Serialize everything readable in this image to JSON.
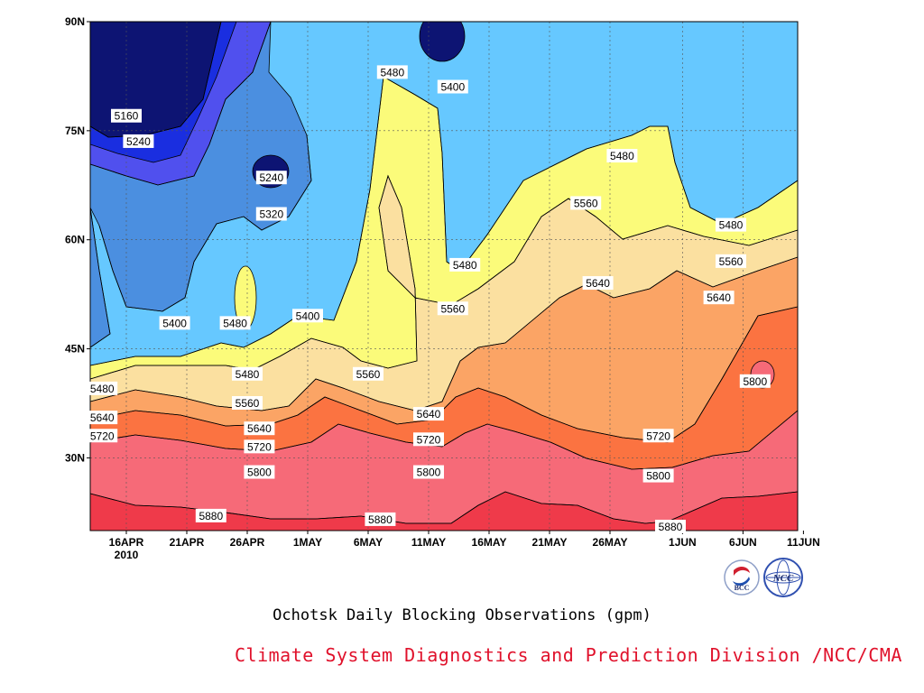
{
  "title": "Ochotsk Daily Blocking Observations (gpm)",
  "credit": "Climate System Diagnostics and Prediction Division /NCC/CMA",
  "logos": [
    {
      "name": "bcc-logo",
      "text": "BCC"
    },
    {
      "name": "ncc-logo",
      "text": "NCC"
    }
  ],
  "colors": {
    "c5160": "#0d1473",
    "c5240": "#1a2ee0",
    "c5320": "#5050ee",
    "c5400": "#4b8fe0",
    "c5480": "#66c8ff",
    "c5560": "#fbfb7a",
    "c5640": "#fbe0a0",
    "c5720": "#fba465",
    "c5800": "#fb7341",
    "c5880": "#f66a78",
    "c5960": "#ef3a4a",
    "credit": "#e0112b"
  },
  "chart_data": {
    "type": "heatmap",
    "subtype": "filled-contour",
    "title": "Ochotsk Daily Blocking Observations (gpm)",
    "x_ticks": [
      "16APR",
      "21APR",
      "26APR",
      "1MAY",
      "6MAY",
      "11MAY",
      "16MAY",
      "21MAY",
      "26MAY",
      "1JUN",
      "6JUN",
      "11JUN"
    ],
    "x_subtitle": "2010",
    "y_ticks": [
      "90N",
      "75N",
      "60N",
      "45N",
      "30N"
    ],
    "y_values": [
      90,
      75,
      60,
      45,
      30
    ],
    "ylim": [
      20,
      90
    ],
    "grid": true,
    "contour_interval": 80,
    "contour_levels": [
      5160,
      5240,
      5320,
      5400,
      5480,
      5560,
      5640,
      5720,
      5800,
      5880
    ],
    "contour_labels": [
      {
        "text": "5160",
        "date": "16APR",
        "lat": 77
      },
      {
        "text": "5240",
        "date": "17APR",
        "lat": 73.5
      },
      {
        "text": "5240",
        "date": "28APR",
        "lat": 68.5
      },
      {
        "text": "5320",
        "date": "28APR",
        "lat": 63.5
      },
      {
        "text": "5400",
        "date": "20APR",
        "lat": 48.5
      },
      {
        "text": "5480",
        "date": "25APR",
        "lat": 48.5
      },
      {
        "text": "5400",
        "date": "1MAY",
        "lat": 49.5
      },
      {
        "text": "5480",
        "date": "8MAY",
        "lat": 83
      },
      {
        "text": "5400",
        "date": "13MAY",
        "lat": 81
      },
      {
        "text": "5480",
        "date": "27MAY",
        "lat": 71.5
      },
      {
        "text": "5560",
        "date": "24MAY",
        "lat": 65
      },
      {
        "text": "5480",
        "date": "14MAY",
        "lat": 56.5
      },
      {
        "text": "5560",
        "date": "13MAY",
        "lat": 50.5
      },
      {
        "text": "5640",
        "date": "25MAY",
        "lat": 54
      },
      {
        "text": "5480",
        "date": "5JUN",
        "lat": 62
      },
      {
        "text": "5560",
        "date": "5JUN",
        "lat": 57
      },
      {
        "text": "5640",
        "date": "4JUN",
        "lat": 52
      },
      {
        "text": "5480",
        "date": "14APR",
        "lat": 39.5
      },
      {
        "text": "5480",
        "date": "26APR",
        "lat": 41.5
      },
      {
        "text": "5560",
        "date": "26APR",
        "lat": 37.5
      },
      {
        "text": "5560",
        "date": "6MAY",
        "lat": 41.5
      },
      {
        "text": "5640",
        "date": "14APR",
        "lat": 35.5
      },
      {
        "text": "5720",
        "date": "14APR",
        "lat": 33
      },
      {
        "text": "5640",
        "date": "27APR",
        "lat": 34
      },
      {
        "text": "5720",
        "date": "27APR",
        "lat": 31.5
      },
      {
        "text": "5640",
        "date": "11MAY",
        "lat": 36
      },
      {
        "text": "5720",
        "date": "11MAY",
        "lat": 32.5
      },
      {
        "text": "5800",
        "date": "27APR",
        "lat": 28
      },
      {
        "text": "5800",
        "date": "11MAY",
        "lat": 28
      },
      {
        "text": "5720",
        "date": "30MAY",
        "lat": 33
      },
      {
        "text": "5800",
        "date": "30MAY",
        "lat": 27.5
      },
      {
        "text": "5800",
        "date": "7JUN",
        "lat": 40.5
      },
      {
        "text": "5880",
        "date": "23APR",
        "lat": 22
      },
      {
        "text": "5880",
        "date": "7MAY",
        "lat": 21.5
      },
      {
        "text": "5880",
        "date": "31MAY",
        "lat": 20.5
      }
    ]
  }
}
